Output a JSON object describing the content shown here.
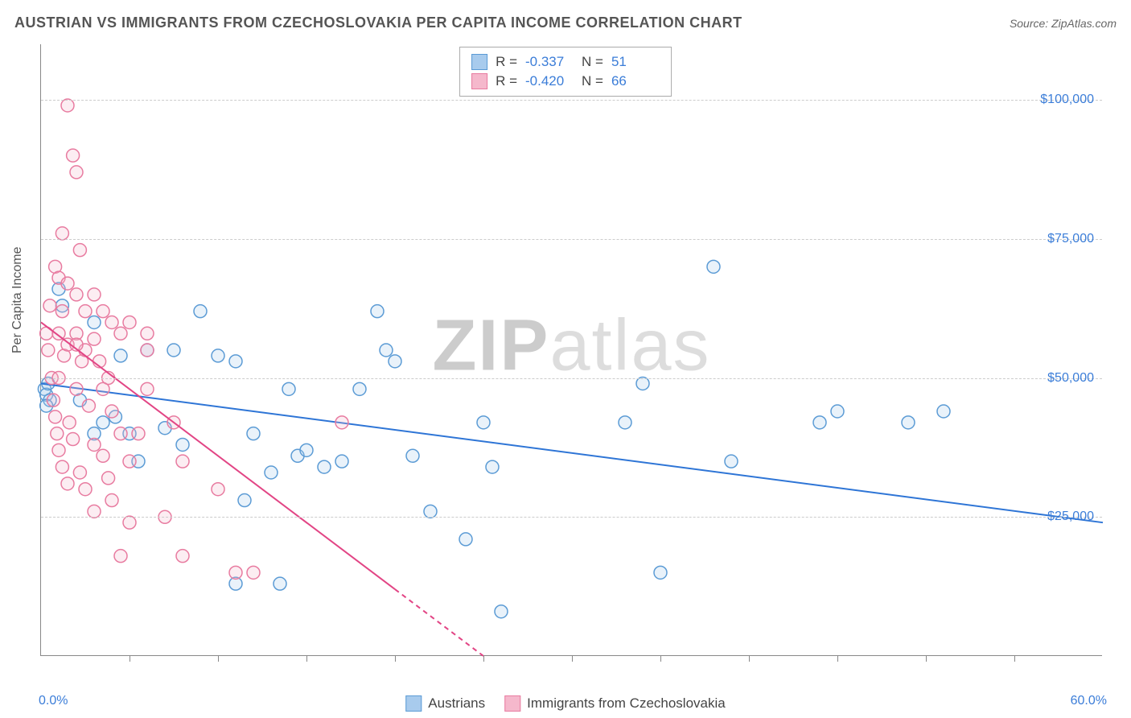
{
  "header": {
    "title": "AUSTRIAN VS IMMIGRANTS FROM CZECHOSLOVAKIA PER CAPITA INCOME CORRELATION CHART",
    "source": "Source: ZipAtlas.com"
  },
  "watermark": {
    "bold": "ZIP",
    "light": "atlas"
  },
  "chart": {
    "type": "scatter",
    "ylabel": "Per Capita Income",
    "xlim": [
      0,
      60
    ],
    "ylim": [
      0,
      110000
    ],
    "x_axis_labels": {
      "left": "0.0%",
      "right": "60.0%"
    },
    "y_ticks": [
      25000,
      50000,
      75000,
      100000
    ],
    "y_tick_labels": [
      "$25,000",
      "$50,000",
      "$75,000",
      "$100,000"
    ],
    "x_tick_positions": [
      5,
      10,
      15,
      20,
      25,
      30,
      35,
      40,
      45,
      50,
      55
    ],
    "background_color": "#ffffff",
    "grid_color": "#cccccc",
    "grid_style": "dashed",
    "label_fontsize": 16,
    "tick_color": "#3b7dd8",
    "marker_radius": 8,
    "marker_fill_opacity": 0.25,
    "marker_stroke_width": 1.5,
    "line_width": 2,
    "series": [
      {
        "name": "Austrians",
        "color_stroke": "#5b9bd5",
        "color_fill": "#a8cbed",
        "line_color": "#2e75d6",
        "R": "-0.337",
        "N": "51",
        "trend": {
          "x1": 0,
          "y1": 49000,
          "x2": 60,
          "y2": 24000
        },
        "points": [
          [
            0.2,
            48000
          ],
          [
            0.3,
            47000
          ],
          [
            0.5,
            46000
          ],
          [
            0.3,
            45000
          ],
          [
            0.4,
            49000
          ],
          [
            1.0,
            66000
          ],
          [
            1.2,
            63000
          ],
          [
            3.0,
            60000
          ],
          [
            4.5,
            54000
          ],
          [
            6.0,
            55000
          ],
          [
            2.2,
            46000
          ],
          [
            3.5,
            42000
          ],
          [
            4.2,
            43000
          ],
          [
            5.0,
            40000
          ],
          [
            7.0,
            41000
          ],
          [
            9.0,
            62000
          ],
          [
            10.0,
            54000
          ],
          [
            11.0,
            53000
          ],
          [
            12.0,
            40000
          ],
          [
            13.0,
            33000
          ],
          [
            14.0,
            48000
          ],
          [
            14.5,
            36000
          ],
          [
            15.0,
            37000
          ],
          [
            16.0,
            34000
          ],
          [
            17.0,
            35000
          ],
          [
            18.0,
            48000
          ],
          [
            19.0,
            62000
          ],
          [
            19.5,
            55000
          ],
          [
            20.0,
            53000
          ],
          [
            21.0,
            36000
          ],
          [
            22.0,
            26000
          ],
          [
            24.0,
            21000
          ],
          [
            25.0,
            42000
          ],
          [
            25.5,
            34000
          ],
          [
            26.0,
            8000
          ],
          [
            11.5,
            28000
          ],
          [
            7.5,
            55000
          ],
          [
            8.0,
            38000
          ],
          [
            13.5,
            13000
          ],
          [
            11.0,
            13000
          ],
          [
            33.0,
            42000
          ],
          [
            34.0,
            49000
          ],
          [
            35.0,
            15000
          ],
          [
            38.0,
            70000
          ],
          [
            39.0,
            35000
          ],
          [
            44.0,
            42000
          ],
          [
            45.0,
            44000
          ],
          [
            49.0,
            42000
          ],
          [
            51.0,
            44000
          ],
          [
            3.0,
            40000
          ],
          [
            5.5,
            35000
          ]
        ]
      },
      {
        "name": "Immigrants from Czechoslovakia",
        "color_stroke": "#e87ba0",
        "color_fill": "#f5b8cc",
        "line_color": "#e24585",
        "R": "-0.420",
        "N": "66",
        "trend": {
          "x1": 0,
          "y1": 60000,
          "x2": 25,
          "y2": 0
        },
        "trend_dash_after_x": 20,
        "points": [
          [
            1.5,
            99000
          ],
          [
            1.8,
            90000
          ],
          [
            2.0,
            87000
          ],
          [
            1.2,
            76000
          ],
          [
            2.2,
            73000
          ],
          [
            0.8,
            70000
          ],
          [
            1.0,
            68000
          ],
          [
            1.5,
            67000
          ],
          [
            2.0,
            65000
          ],
          [
            3.0,
            65000
          ],
          [
            0.5,
            63000
          ],
          [
            1.2,
            62000
          ],
          [
            2.5,
            62000
          ],
          [
            3.5,
            62000
          ],
          [
            4.0,
            60000
          ],
          [
            0.3,
            58000
          ],
          [
            1.0,
            58000
          ],
          [
            2.0,
            58000
          ],
          [
            3.0,
            57000
          ],
          [
            4.5,
            58000
          ],
          [
            0.4,
            55000
          ],
          [
            1.3,
            54000
          ],
          [
            2.3,
            53000
          ],
          [
            3.3,
            53000
          ],
          [
            5.0,
            60000
          ],
          [
            0.6,
            50000
          ],
          [
            1.5,
            56000
          ],
          [
            2.5,
            55000
          ],
          [
            3.8,
            50000
          ],
          [
            6.0,
            58000
          ],
          [
            0.7,
            46000
          ],
          [
            1.6,
            42000
          ],
          [
            2.7,
            45000
          ],
          [
            4.0,
            44000
          ],
          [
            5.5,
            40000
          ],
          [
            0.8,
            43000
          ],
          [
            1.8,
            39000
          ],
          [
            3.0,
            38000
          ],
          [
            4.5,
            40000
          ],
          [
            7.5,
            42000
          ],
          [
            0.9,
            40000
          ],
          [
            2.0,
            56000
          ],
          [
            3.5,
            36000
          ],
          [
            5.0,
            35000
          ],
          [
            8.0,
            35000
          ],
          [
            1.0,
            37000
          ],
          [
            2.2,
            33000
          ],
          [
            3.8,
            32000
          ],
          [
            6.0,
            55000
          ],
          [
            10.0,
            30000
          ],
          [
            1.2,
            34000
          ],
          [
            2.5,
            30000
          ],
          [
            4.0,
            28000
          ],
          [
            7.0,
            25000
          ],
          [
            12.0,
            15000
          ],
          [
            1.5,
            31000
          ],
          [
            3.0,
            26000
          ],
          [
            4.5,
            18000
          ],
          [
            8.0,
            18000
          ],
          [
            17.0,
            42000
          ],
          [
            5.0,
            24000
          ],
          [
            6.0,
            48000
          ],
          [
            2.0,
            48000
          ],
          [
            3.5,
            48000
          ],
          [
            1.0,
            50000
          ],
          [
            11.0,
            15000
          ]
        ]
      }
    ]
  },
  "stats_legend": {
    "rows": [
      {
        "swatch_fill": "#a8cbed",
        "swatch_border": "#5b9bd5",
        "r_label": "R =",
        "r_val": "-0.337",
        "n_label": "N =",
        "n_val": "51"
      },
      {
        "swatch_fill": "#f5b8cc",
        "swatch_border": "#e87ba0",
        "r_label": "R =",
        "r_val": "-0.420",
        "n_label": "N =",
        "n_val": "66"
      }
    ]
  },
  "bottom_legend": {
    "items": [
      {
        "swatch_fill": "#a8cbed",
        "swatch_border": "#5b9bd5",
        "label": "Austrians"
      },
      {
        "swatch_fill": "#f5b8cc",
        "swatch_border": "#e87ba0",
        "label": "Immigrants from Czechoslovakia"
      }
    ]
  }
}
